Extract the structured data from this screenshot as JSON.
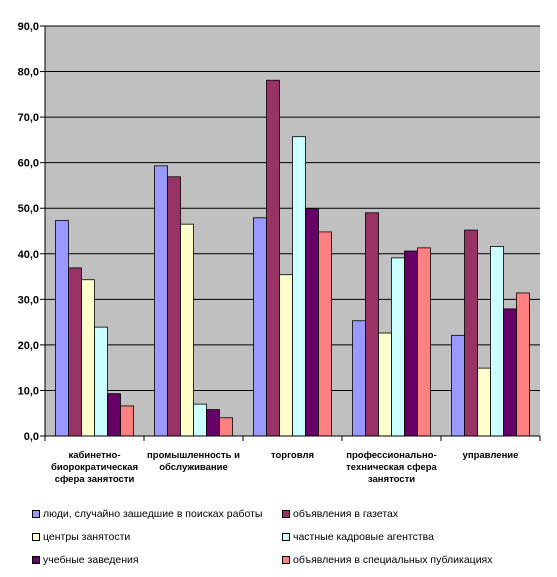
{
  "chart_data": {
    "type": "bar",
    "categories": [
      [
        "кабинетно-",
        "биорократическая",
        "сфера занятости"
      ],
      [
        "промышленность и",
        "обслуживание"
      ],
      [
        "торговля"
      ],
      [
        "профессионально-",
        "техническая сфера",
        "занятости"
      ],
      [
        "управление"
      ]
    ],
    "series": [
      {
        "name": "люди, случайно зашедшие в поисках работы",
        "color": "#9999ff",
        "values": [
          47.3,
          59.3,
          47.9,
          25.3,
          22.1
        ]
      },
      {
        "name": "объявления в газетах",
        "color": "#993366",
        "values": [
          36.9,
          56.9,
          78.1,
          49.0,
          45.2
        ]
      },
      {
        "name": "центры занятости",
        "color": "#ffffcc",
        "values": [
          34.3,
          46.5,
          35.4,
          22.6,
          14.9
        ]
      },
      {
        "name": "частные кадровые агентства",
        "color": "#ccffff",
        "values": [
          23.9,
          7.0,
          65.7,
          39.1,
          41.6
        ]
      },
      {
        "name": "учебные заведения",
        "color": "#660066",
        "values": [
          9.3,
          5.8,
          49.9,
          40.6,
          27.9
        ]
      },
      {
        "name": "объявления в специальных публикациях",
        "color": "#ff8080",
        "values": [
          6.6,
          4.0,
          44.8,
          41.3,
          31.4
        ]
      }
    ],
    "ylim": [
      0,
      90
    ],
    "yticks": [
      "0,0",
      "10,0",
      "20,0",
      "30,0",
      "40,0",
      "50,0",
      "60,0",
      "70,0",
      "80,0",
      "90,0"
    ],
    "grid": true,
    "plot_background": "#c0c0c0",
    "legend_position": "bottom"
  }
}
